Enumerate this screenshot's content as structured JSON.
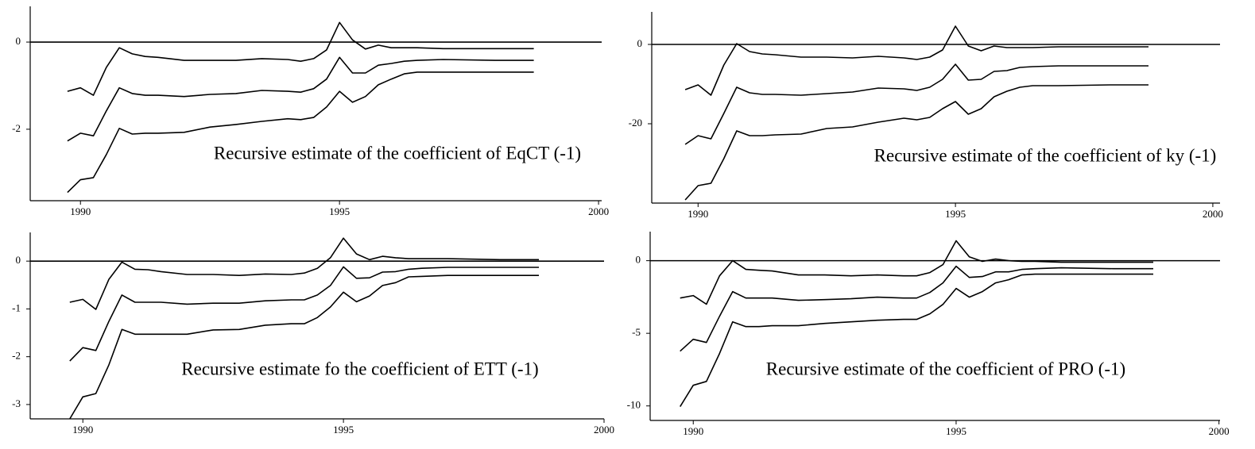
{
  "chart_data": [
    {
      "type": "line",
      "annotation": "Recursive estimate of the coefficient of EqCT (-1)",
      "xlim": [
        1989.03,
        2000.06
      ],
      "xticks": [
        1990,
        1995,
        2000
      ],
      "ylim": [
        -3.64,
        0.82
      ],
      "yticks": [
        0,
        -2
      ],
      "hlines": [
        0
      ],
      "color": "#000000",
      "x": [
        1989.75,
        1990,
        1990.25,
        1990.5,
        1990.75,
        1991,
        1991.25,
        1991.5,
        1992,
        1992.5,
        1993,
        1993.5,
        1994,
        1994.25,
        1994.5,
        1994.75,
        1995,
        1995.25,
        1995.5,
        1995.75,
        1996,
        1996.25,
        1996.5,
        1997,
        1998,
        1998.75
      ],
      "series": [
        {
          "values": [
            -1.13,
            -1.05,
            -1.22,
            -0.58,
            -0.13,
            -0.27,
            -0.33,
            -0.35,
            -0.42,
            -0.42,
            -0.42,
            -0.38,
            -0.4,
            -0.44,
            -0.38,
            -0.18,
            0.45,
            0.05,
            -0.16,
            -0.07,
            -0.13,
            -0.13,
            -0.13,
            -0.15,
            -0.15,
            -0.15
          ]
        },
        {
          "values": [
            -2.27,
            -2.09,
            -2.15,
            -1.58,
            -1.05,
            -1.18,
            -1.22,
            -1.22,
            -1.25,
            -1.2,
            -1.18,
            -1.11,
            -1.13,
            -1.15,
            -1.07,
            -0.85,
            -0.35,
            -0.71,
            -0.71,
            -0.53,
            -0.49,
            -0.44,
            -0.42,
            -0.4,
            -0.42,
            -0.42
          ]
        },
        {
          "values": [
            -3.45,
            -3.16,
            -3.11,
            -2.58,
            -1.98,
            -2.11,
            -2.09,
            -2.09,
            -2.07,
            -1.95,
            -1.89,
            -1.82,
            -1.76,
            -1.78,
            -1.73,
            -1.49,
            -1.13,
            -1.38,
            -1.25,
            -0.98,
            -0.85,
            -0.73,
            -0.69,
            -0.69,
            -0.69,
            -0.69
          ]
        }
      ]
    },
    {
      "type": "line",
      "annotation": "Recursive estimate of the coefficient of ky (-1)",
      "xlim": [
        1989.1,
        2000.14
      ],
      "xticks": [
        1990,
        1995,
        2000
      ],
      "ylim": [
        -40,
        8.2
      ],
      "yticks": [
        0,
        -20
      ],
      "hlines": [
        0
      ],
      "color": "#000000",
      "x": [
        1989.75,
        1990,
        1990.25,
        1990.5,
        1990.75,
        1991,
        1991.25,
        1991.5,
        1992,
        1992.5,
        1993,
        1993.5,
        1994,
        1994.25,
        1994.5,
        1994.75,
        1995,
        1995.25,
        1995.5,
        1995.75,
        1996,
        1996.25,
        1996.5,
        1997,
        1998,
        1998.75
      ],
      "series": [
        {
          "values": [
            -11.4,
            -10.2,
            -12.8,
            -5.2,
            0.2,
            -1.8,
            -2.4,
            -2.6,
            -3.2,
            -3.2,
            -3.4,
            -3,
            -3.4,
            -3.8,
            -3.2,
            -1.4,
            4.6,
            -0.4,
            -1.6,
            -0.4,
            -0.8,
            -0.8,
            -0.8,
            -0.6,
            -0.6,
            -0.6
          ]
        },
        {
          "values": [
            -25.2,
            -23,
            -23.8,
            -17.4,
            -10.8,
            -12.2,
            -12.6,
            -12.6,
            -12.8,
            -12.4,
            -12,
            -11,
            -11.2,
            -11.6,
            -10.8,
            -8.8,
            -5,
            -9,
            -8.8,
            -6.8,
            -6.6,
            -5.8,
            -5.6,
            -5.4,
            -5.4,
            -5.4
          ]
        },
        {
          "values": [
            -39.2,
            -35.6,
            -35,
            -28.8,
            -21.8,
            -23,
            -23,
            -22.8,
            -22.6,
            -21.2,
            -20.8,
            -19.6,
            -18.6,
            -19,
            -18.4,
            -16.2,
            -14.4,
            -17.6,
            -16.2,
            -13.2,
            -11.8,
            -10.8,
            -10.4,
            -10.4,
            -10.2,
            -10.2
          ]
        }
      ]
    },
    {
      "type": "line",
      "annotation": "Recursive estimate fo the coefficient of ETT (-1)",
      "xlim": [
        1988.99,
        2000.0
      ],
      "xticks": [
        1990,
        1995,
        2000
      ],
      "ylim": [
        -3.3,
        0.6
      ],
      "yticks": [
        0,
        -1,
        -2,
        -3
      ],
      "hlines": [
        0
      ],
      "color": "#000000",
      "x": [
        1989.75,
        1990,
        1990.25,
        1990.5,
        1990.75,
        1991,
        1991.25,
        1991.5,
        1992,
        1992.5,
        1993,
        1993.5,
        1994,
        1994.25,
        1994.5,
        1994.75,
        1995,
        1995.25,
        1995.5,
        1995.75,
        1996,
        1996.25,
        1996.5,
        1997,
        1998,
        1998.75
      ],
      "series": [
        {
          "values": [
            -0.86,
            -0.8,
            -1.01,
            -0.38,
            -0.02,
            -0.17,
            -0.18,
            -0.22,
            -0.28,
            -0.28,
            -0.3,
            -0.27,
            -0.28,
            -0.25,
            -0.15,
            0.07,
            0.48,
            0.15,
            0.03,
            0.1,
            0.07,
            0.05,
            0.05,
            0.05,
            0.03,
            0.03
          ]
        },
        {
          "values": [
            -2.09,
            -1.81,
            -1.87,
            -1.26,
            -0.71,
            -0.86,
            -0.86,
            -0.86,
            -0.9,
            -0.88,
            -0.88,
            -0.83,
            -0.81,
            -0.81,
            -0.71,
            -0.51,
            -0.12,
            -0.36,
            -0.35,
            -0.23,
            -0.22,
            -0.17,
            -0.15,
            -0.13,
            -0.13,
            -0.13
          ]
        },
        {
          "values": [
            -3.3,
            -2.84,
            -2.77,
            -2.17,
            -1.43,
            -1.53,
            -1.53,
            -1.53,
            -1.53,
            -1.44,
            -1.43,
            -1.34,
            -1.31,
            -1.31,
            -1.18,
            -0.96,
            -0.65,
            -0.85,
            -0.73,
            -0.51,
            -0.45,
            -0.33,
            -0.32,
            -0.3,
            -0.3,
            -0.3
          ]
        }
      ]
    },
    {
      "type": "line",
      "annotation": "Recursive estimate of the coefficient of PRO (-1)",
      "xlim": [
        1989.18,
        2000.02
      ],
      "xticks": [
        1990,
        1995,
        2000
      ],
      "ylim": [
        -11,
        2
      ],
      "yticks": [
        0,
        -5,
        -10
      ],
      "hlines": [
        0
      ],
      "color": "#000000",
      "x": [
        1989.75,
        1990,
        1990.25,
        1990.5,
        1990.75,
        1991,
        1991.25,
        1991.5,
        1992,
        1992.5,
        1993,
        1993.5,
        1994,
        1994.25,
        1994.5,
        1994.75,
        1995,
        1995.25,
        1995.5,
        1995.75,
        1996,
        1996.25,
        1996.5,
        1997,
        1998,
        1998.75
      ],
      "series": [
        {
          "values": [
            -2.57,
            -2.4,
            -3,
            -1.04,
            0,
            -0.6,
            -0.66,
            -0.71,
            -0.98,
            -0.98,
            -1.04,
            -0.98,
            -1.04,
            -1.04,
            -0.82,
            -0.27,
            1.37,
            0.27,
            -0.05,
            0.11,
            0,
            -0.05,
            -0.05,
            -0.11,
            -0.11,
            -0.11
          ]
        },
        {
          "values": [
            -6.23,
            -5.41,
            -5.63,
            -3.83,
            -2.13,
            -2.57,
            -2.57,
            -2.57,
            -2.73,
            -2.68,
            -2.62,
            -2.51,
            -2.57,
            -2.57,
            -2.19,
            -1.53,
            -0.38,
            -1.15,
            -1.09,
            -0.77,
            -0.77,
            -0.6,
            -0.55,
            -0.49,
            -0.55,
            -0.55
          ]
        },
        {
          "values": [
            -10.05,
            -8.58,
            -8.31,
            -6.39,
            -4.21,
            -4.54,
            -4.54,
            -4.48,
            -4.48,
            -4.32,
            -4.21,
            -4.1,
            -4.04,
            -4.04,
            -3.66,
            -3.01,
            -1.91,
            -2.51,
            -2.13,
            -1.53,
            -1.31,
            -0.98,
            -0.93,
            -0.93,
            -0.93,
            -0.93
          ]
        }
      ]
    }
  ]
}
